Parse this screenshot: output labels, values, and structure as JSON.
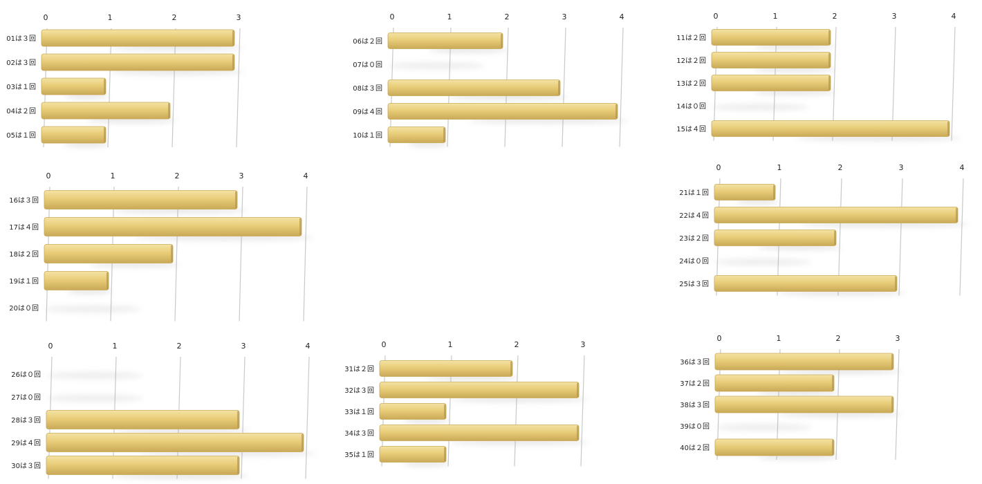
{
  "colors": {
    "bar_top": "#f4e3a4",
    "bar_mid": "#e8cc78",
    "bar_bottom": "#c9a957",
    "bar_end": "#b5974e",
    "grid": "#c8c8c8",
    "shadow": "#9e9e9e"
  },
  "chart_data": [
    {
      "type": "bar",
      "orientation": "horizontal",
      "xlim": [
        0,
        3
      ],
      "ticks": [
        "0",
        "1",
        "2",
        "3"
      ],
      "categories": [
        "01は３回",
        "02は３回",
        "03は１回",
        "04は２回",
        "05は１回"
      ],
      "values": [
        3,
        3,
        1,
        2,
        1
      ]
    },
    {
      "type": "bar",
      "orientation": "horizontal",
      "xlim": [
        0,
        4
      ],
      "ticks": [
        "0",
        "1",
        "2",
        "3",
        "4"
      ],
      "categories": [
        "06は２回",
        "07は０回",
        "08は３回",
        "09は４回",
        "10は１回"
      ],
      "values": [
        2,
        0,
        3,
        4,
        1
      ]
    },
    {
      "type": "bar",
      "orientation": "horizontal",
      "xlim": [
        0,
        4
      ],
      "ticks": [
        "0",
        "1",
        "2",
        "3",
        "4"
      ],
      "categories": [
        "11は２回",
        "12は２回",
        "13は２回",
        "14は０回",
        "15は４回"
      ],
      "values": [
        2,
        2,
        2,
        0,
        4
      ]
    },
    {
      "type": "bar",
      "orientation": "horizontal",
      "xlim": [
        0,
        4
      ],
      "ticks": [
        "0",
        "1",
        "2",
        "3",
        "4"
      ],
      "categories": [
        "16は３回",
        "17は４回",
        "18は２回",
        "19は１回",
        "20は０回"
      ],
      "values": [
        3,
        4,
        2,
        1,
        0
      ]
    },
    {
      "type": "bar",
      "orientation": "horizontal",
      "xlim": [
        0,
        4
      ],
      "ticks": [
        "0",
        "1",
        "2",
        "3",
        "4"
      ],
      "categories": [
        "21は１回",
        "22は４回",
        "23は２回",
        "24は０回",
        "25は３回"
      ],
      "values": [
        1,
        4,
        2,
        0,
        3
      ]
    },
    {
      "type": "bar",
      "orientation": "horizontal",
      "xlim": [
        0,
        4
      ],
      "ticks": [
        "0",
        "1",
        "2",
        "3",
        "4"
      ],
      "categories": [
        "26は０回",
        "27は０回",
        "28は３回",
        "29は４回",
        "30は３回"
      ],
      "values": [
        0,
        0,
        3,
        4,
        3
      ]
    },
    {
      "type": "bar",
      "orientation": "horizontal",
      "xlim": [
        0,
        3
      ],
      "ticks": [
        "0",
        "1",
        "2",
        "3"
      ],
      "categories": [
        "31は２回",
        "32は３回",
        "33は１回",
        "34は３回",
        "35は１回"
      ],
      "values": [
        2,
        3,
        1,
        3,
        1
      ]
    },
    {
      "type": "bar",
      "orientation": "horizontal",
      "xlim": [
        0,
        3
      ],
      "ticks": [
        "0",
        "1",
        "2",
        "3"
      ],
      "categories": [
        "36は３回",
        "37は２回",
        "38は３回",
        "39は０回",
        "40は２回"
      ],
      "values": [
        3,
        2,
        3,
        0,
        2
      ]
    }
  ]
}
